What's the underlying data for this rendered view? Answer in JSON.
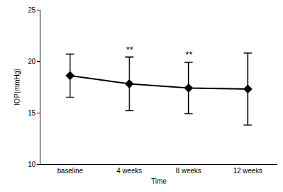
{
  "chart_data": {
    "type": "line",
    "categories": [
      "baseline",
      "4 weeks",
      "8 weeks",
      "12 weeks"
    ],
    "values": [
      18.6,
      17.8,
      17.4,
      17.3
    ],
    "errors": [
      2.1,
      2.6,
      2.5,
      3.5
    ],
    "color": "#000000",
    "marker": "diamond",
    "line_style": "solid",
    "x_label": "Time",
    "y_label": "IOP(mmHg)",
    "ylim": [
      10,
      25
    ],
    "yticks": [
      10,
      15,
      20,
      25
    ],
    "grid": false,
    "annotations": [
      {
        "text": "**",
        "category": "4 weeks"
      },
      {
        "text": "**",
        "category": "8 weeks"
      }
    ]
  }
}
